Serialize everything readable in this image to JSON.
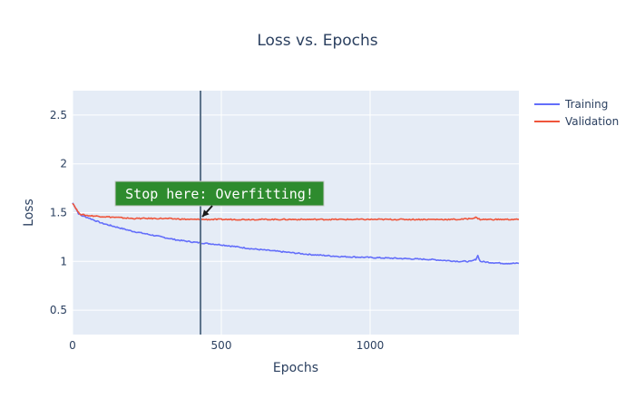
{
  "chart_data": {
    "type": "line",
    "title": "Loss vs. Epochs",
    "xlabel": "Epochs",
    "ylabel": "Loss",
    "xlim": [
      0,
      1500
    ],
    "ylim": [
      0.25,
      2.75
    ],
    "x_ticks": [
      0,
      500,
      1000
    ],
    "x_tick_labels": [
      "0",
      "500",
      "1000"
    ],
    "y_ticks": [
      0.5,
      1,
      1.5,
      2,
      2.5
    ],
    "y_tick_labels": [
      "0.5",
      "1",
      "1.5",
      "2",
      "2.5"
    ],
    "grid": true,
    "legend_position": "top-right",
    "series": [
      {
        "name": "Training",
        "color": "#636efa",
        "x": [
          0,
          10,
          20,
          30,
          50,
          75,
          100,
          150,
          200,
          250,
          300,
          350,
          400,
          430,
          500,
          600,
          700,
          800,
          900,
          1000,
          1100,
          1200,
          1300,
          1340,
          1355,
          1362,
          1370,
          1400,
          1450,
          1500
        ],
        "y": [
          1.6,
          1.55,
          1.49,
          1.47,
          1.45,
          1.42,
          1.39,
          1.35,
          1.31,
          1.28,
          1.25,
          1.22,
          1.2,
          1.19,
          1.17,
          1.13,
          1.1,
          1.07,
          1.05,
          1.04,
          1.03,
          1.02,
          1.0,
          1.0,
          1.02,
          1.06,
          1.0,
          0.99,
          0.98,
          0.98
        ]
      },
      {
        "name": "Validation",
        "color": "#ef553b",
        "x": [
          0,
          10,
          20,
          30,
          50,
          100,
          150,
          200,
          300,
          400,
          430,
          500,
          600,
          700,
          800,
          900,
          1000,
          1100,
          1200,
          1300,
          1340,
          1355,
          1370,
          1400,
          1450,
          1500
        ],
        "y": [
          1.6,
          1.55,
          1.5,
          1.48,
          1.47,
          1.46,
          1.45,
          1.44,
          1.44,
          1.43,
          1.43,
          1.43,
          1.43,
          1.43,
          1.43,
          1.43,
          1.43,
          1.43,
          1.43,
          1.43,
          1.44,
          1.45,
          1.43,
          1.43,
          1.43,
          1.43
        ]
      }
    ],
    "vline": {
      "x": 430,
      "color": "#5a7189"
    },
    "annotation": {
      "text": "Stop here: Overfitting!",
      "x": 430,
      "y": 1.43,
      "bgcolor": "#2e8b2e",
      "bordercolor": "#c8c8c8",
      "arrowcolor": "#1a1a1a"
    },
    "colors": {
      "plot_bg": "#e5ecf6",
      "grid": "#ffffff",
      "text": "#2a3f5f"
    }
  }
}
